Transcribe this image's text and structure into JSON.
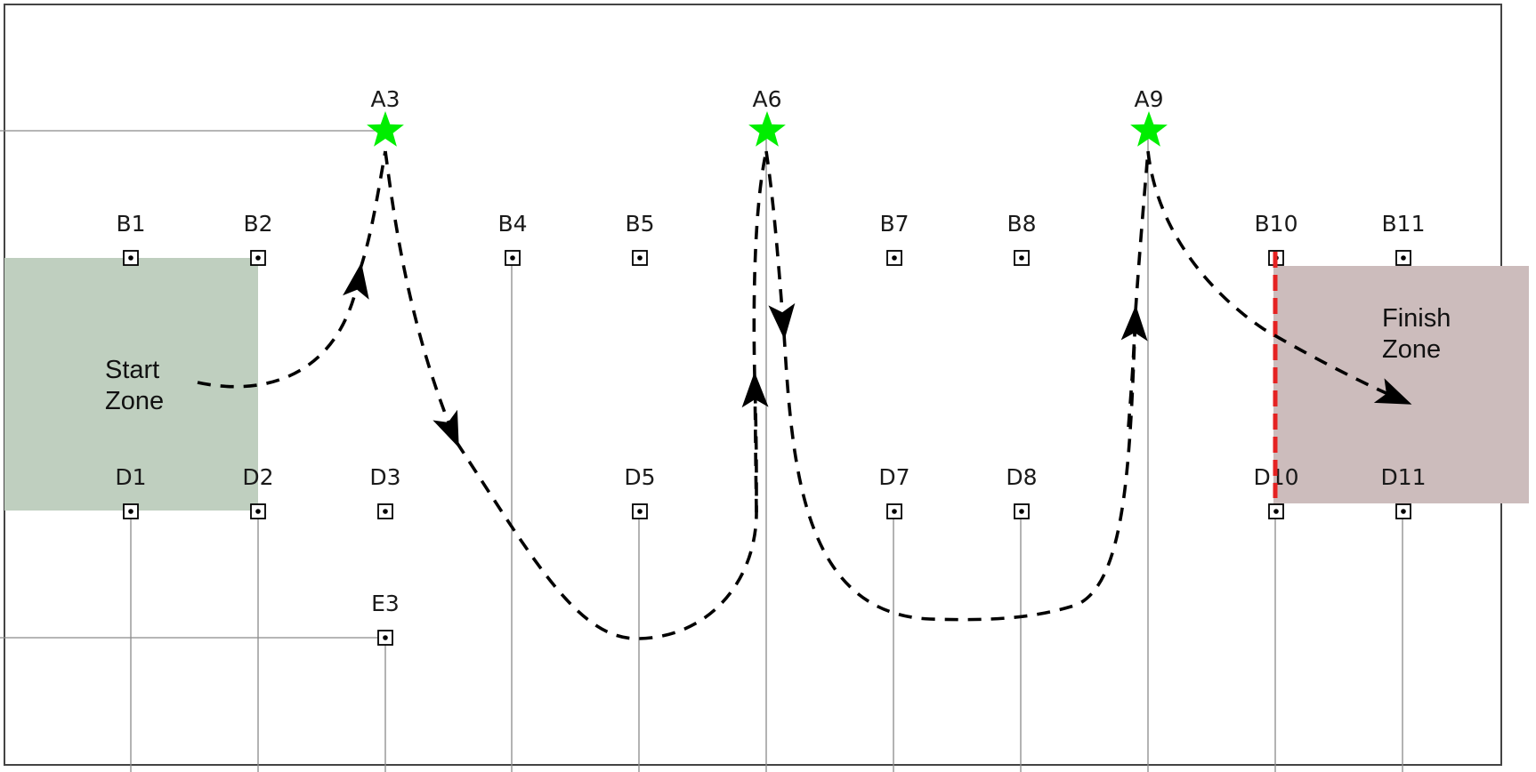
{
  "zones": {
    "start": {
      "line1": "Start",
      "line2": "Zone",
      "color": "#bfcfbf"
    },
    "finish": {
      "line1": "Finish",
      "line2": "Zone",
      "color": "#ccbcbc"
    }
  },
  "markers": [
    {
      "id": "A3",
      "type": "star"
    },
    {
      "id": "A6",
      "type": "star"
    },
    {
      "id": "A9",
      "type": "star"
    },
    {
      "id": "B1",
      "type": "post"
    },
    {
      "id": "B2",
      "type": "post"
    },
    {
      "id": "B4",
      "type": "post"
    },
    {
      "id": "B5",
      "type": "post"
    },
    {
      "id": "B7",
      "type": "post"
    },
    {
      "id": "B8",
      "type": "post"
    },
    {
      "id": "B10",
      "type": "post"
    },
    {
      "id": "B11",
      "type": "post"
    },
    {
      "id": "D1",
      "type": "post"
    },
    {
      "id": "D2",
      "type": "post"
    },
    {
      "id": "D3",
      "type": "post"
    },
    {
      "id": "D5",
      "type": "post"
    },
    {
      "id": "D7",
      "type": "post"
    },
    {
      "id": "D8",
      "type": "post"
    },
    {
      "id": "D10",
      "type": "post"
    },
    {
      "id": "D11",
      "type": "post"
    },
    {
      "id": "E3",
      "type": "post"
    }
  ],
  "colors": {
    "star": "#00ee00",
    "finish_line": "#e52222",
    "path": "#000000",
    "grid": "#8a8a8a"
  }
}
